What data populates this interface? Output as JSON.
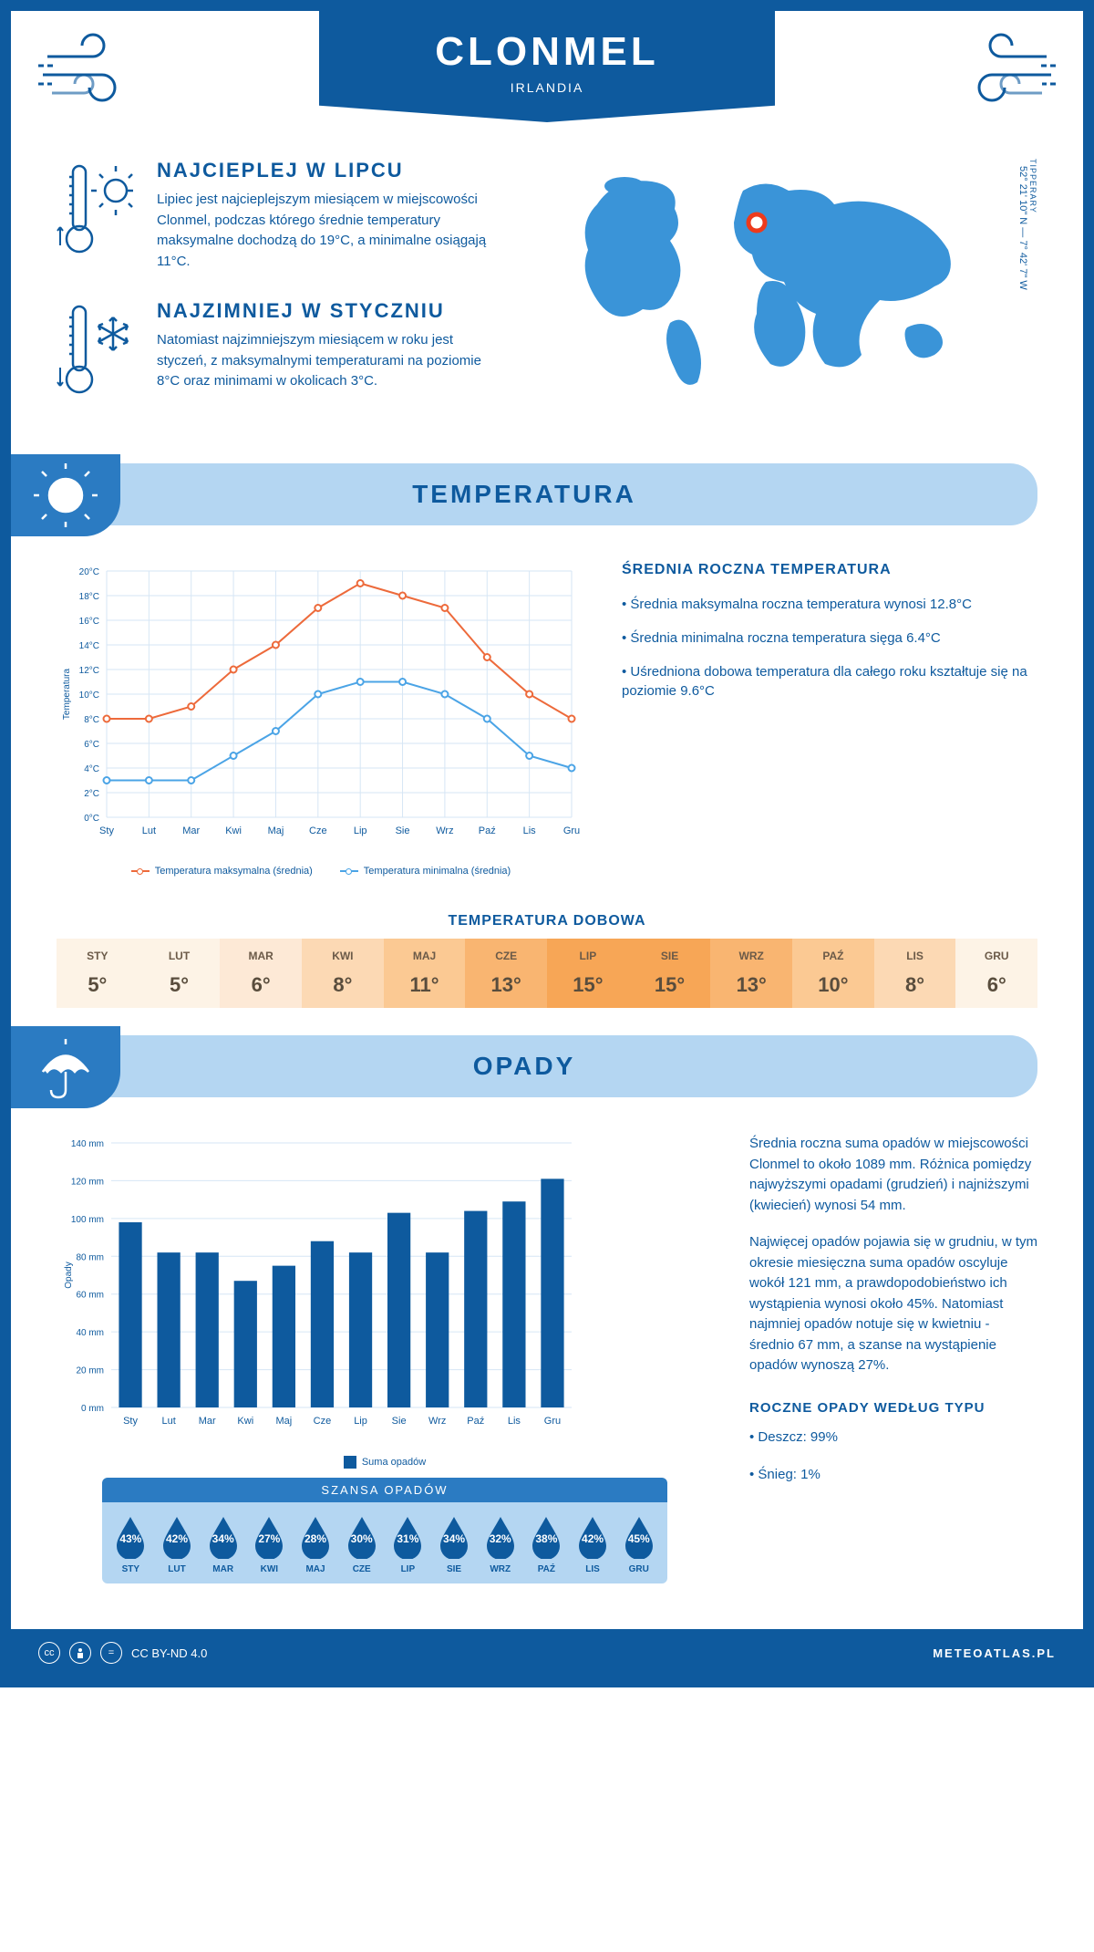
{
  "header": {
    "city": "CLONMEL",
    "country": "IRLANDIA"
  },
  "coords": {
    "lat": "52° 21' 10\" N — 7° 42' 7\" W",
    "region": "TIPPERARY"
  },
  "intro": {
    "hot": {
      "title": "NAJCIEPLEJ W LIPCU",
      "body": "Lipiec jest najcieplejszym miesiącem w miejscowości Clonmel, podczas którego średnie temperatury maksymalne dochodzą do 19°C, a minimalne osiągają 11°C."
    },
    "cold": {
      "title": "NAJZIMNIEJ W STYCZNIU",
      "body": "Natomiast najzimniejszym miesiącem w roku jest styczeń, z maksymalnymi temperaturami na poziomie 8°C oraz minimami w okolicach 3°C."
    }
  },
  "temperature": {
    "section_title": "TEMPERATURA",
    "chart": {
      "type": "line",
      "ylabel": "Temperatura",
      "months": [
        "Sty",
        "Lut",
        "Mar",
        "Kwi",
        "Maj",
        "Cze",
        "Lip",
        "Sie",
        "Wrz",
        "Paź",
        "Lis",
        "Gru"
      ],
      "ylim": [
        0,
        20
      ],
      "ytick_step": 2,
      "ytick_suffix": "°C",
      "grid_color": "#d6e6f5",
      "series": [
        {
          "name": "Temperatura maksymalna (średnia)",
          "color": "#ed6a3b",
          "values": [
            8,
            8,
            9,
            12,
            14,
            17,
            19,
            18,
            17,
            13,
            10,
            8
          ]
        },
        {
          "name": "Temperatura minimalna (średnia)",
          "color": "#4ba4e6",
          "values": [
            3,
            3,
            3,
            5,
            7,
            10,
            11,
            11,
            10,
            8,
            5,
            4
          ]
        }
      ]
    },
    "stats": {
      "title": "ŚREDNIA ROCZNA TEMPERATURA",
      "bullets": [
        "Średnia maksymalna roczna temperatura wynosi 12.8°C",
        "Średnia minimalna roczna temperatura sięga 6.4°C",
        "Uśredniona dobowa temperatura dla całego roku kształtuje się na poziomie 9.6°C"
      ]
    },
    "daily": {
      "title": "TEMPERATURA DOBOWA",
      "months": [
        "STY",
        "LUT",
        "MAR",
        "KWI",
        "MAJ",
        "CZE",
        "LIP",
        "SIE",
        "WRZ",
        "PAŹ",
        "LIS",
        "GRU"
      ],
      "values": [
        "5°",
        "5°",
        "6°",
        "8°",
        "11°",
        "13°",
        "15°",
        "15°",
        "13°",
        "10°",
        "8°",
        "6°"
      ],
      "colors": [
        "#fdf3e6",
        "#fdf3e6",
        "#fde9d6",
        "#fcd9b4",
        "#fbc993",
        "#f9b571",
        "#f7a656",
        "#f7a656",
        "#f9b571",
        "#fbc993",
        "#fcd9b4",
        "#fdf3e6"
      ]
    }
  },
  "precip": {
    "section_title": "OPADY",
    "chart": {
      "type": "bar",
      "ylabel": "Opady",
      "months": [
        "Sty",
        "Lut",
        "Mar",
        "Kwi",
        "Maj",
        "Cze",
        "Lip",
        "Sie",
        "Wrz",
        "Paź",
        "Lis",
        "Gru"
      ],
      "ylim": [
        0,
        140
      ],
      "ytick_step": 20,
      "ytick_suffix": " mm",
      "bar_color": "#0e5a9e",
      "grid_color": "#d6e6f5",
      "values": [
        98,
        82,
        82,
        67,
        75,
        88,
        82,
        103,
        82,
        104,
        109,
        121
      ],
      "legend": "Suma opadów"
    },
    "text": {
      "p1": "Średnia roczna suma opadów w miejscowości Clonmel to około 1089 mm. Różnica pomiędzy najwyższymi opadami (grudzień) i najniższymi (kwiecień) wynosi 54 mm.",
      "p2": "Najwięcej opadów pojawia się w grudniu, w tym okresie miesięczna suma opadów oscyluje wokół 121 mm, a prawdopodobieństwo ich wystąpienia wynosi około 45%. Natomiast najmniej opadów notuje się w kwietniu - średnio 67 mm, a szanse na wystąpienie opadów wynoszą 27%.",
      "type_title": "ROCZNE OPADY WEDŁUG TYPU",
      "type_bullets": [
        "Deszcz: 99%",
        "Śnieg: 1%"
      ]
    },
    "chance": {
      "title": "SZANSA OPADÓW",
      "months": [
        "STY",
        "LUT",
        "MAR",
        "KWI",
        "MAJ",
        "CZE",
        "LIP",
        "SIE",
        "WRZ",
        "PAŹ",
        "LIS",
        "GRU"
      ],
      "values": [
        "43%",
        "42%",
        "34%",
        "27%",
        "28%",
        "30%",
        "31%",
        "34%",
        "32%",
        "38%",
        "42%",
        "45%"
      ],
      "drop_color": "#0e5a9e"
    }
  },
  "footer": {
    "license": "CC BY-ND 4.0",
    "site": "METEOATLAS.PL"
  }
}
